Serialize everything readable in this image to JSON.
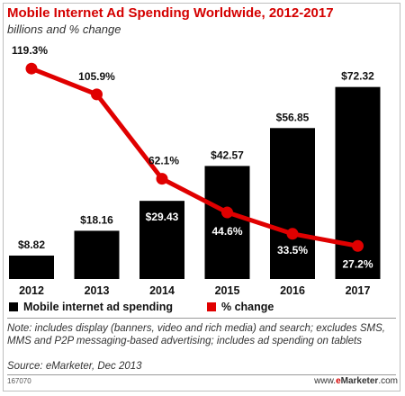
{
  "chart_data": {
    "type": "bar",
    "title": "Mobile Internet Ad Spending Worldwide, 2012-2017",
    "subtitle": "billions and % change",
    "categories": [
      "2012",
      "2013",
      "2014",
      "2015",
      "2016",
      "2017"
    ],
    "series": [
      {
        "name": "Mobile internet ad spending",
        "type": "bar",
        "values": [
          8.82,
          18.16,
          29.43,
          42.57,
          56.85,
          72.32
        ],
        "labels": [
          "$8.82",
          "$18.16",
          "$29.43",
          "$42.57",
          "$56.85",
          "$72.32"
        ],
        "color": "#000000"
      },
      {
        "name": "% change",
        "type": "line",
        "values": [
          119.3,
          105.9,
          62.1,
          44.6,
          33.5,
          27.2
        ],
        "labels": [
          "119.3%",
          "105.9%",
          "62.1%",
          "44.6%",
          "33.5%",
          "27.2%"
        ],
        "color": "#e00000"
      }
    ],
    "legend_placement": "bottom",
    "grid": false
  },
  "note": "Note: includes display (banners, video and rich media) and search; excludes SMS, MMS and P2P messaging-based advertising; includes ad spending on tablets",
  "source": "Source: eMarketer, Dec 2013",
  "chart_id": "167070",
  "brand": {
    "prefix": "www.",
    "name_e": "e",
    "name_rest": "Marketer",
    "suffix": ".com"
  }
}
